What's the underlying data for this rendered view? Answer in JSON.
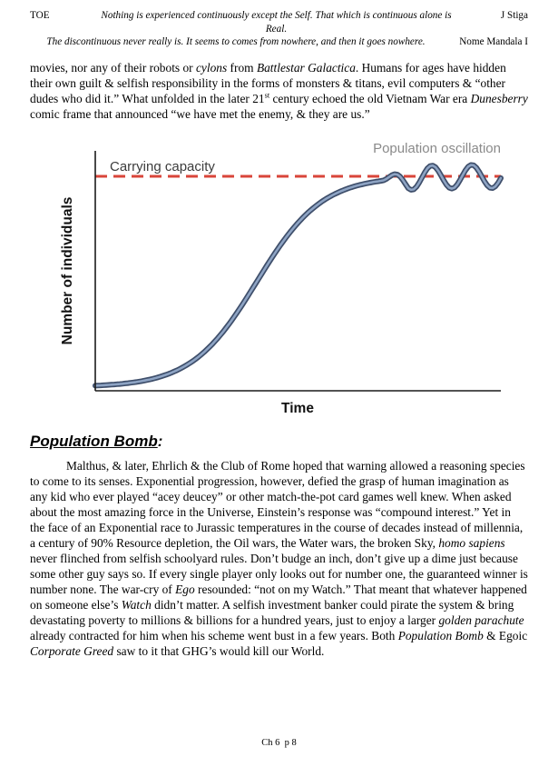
{
  "header": {
    "doc_code": "TOE",
    "quote_line1": "Nothing is experienced continuously except the Self. That which is continuous alone is Real.",
    "author": "J Stiga",
    "quote_line2": "The discontinuous never really is. It seems to comes from nowhere, and then it goes nowhere.",
    "attribution": "Nome Mandala I"
  },
  "paragraph1": {
    "segments": [
      {
        "t": "movies, nor any of their robots or "
      },
      {
        "t": "cylons",
        "s": "i"
      },
      {
        "t": " from "
      },
      {
        "t": "Battlestar Galactica",
        "s": "i"
      },
      {
        "t": ". Humans for ages have hidden their own guilt & selfish responsibility in the forms of monsters & titans, evil computers & “other dudes who did it.” What unfolded in the later 21"
      },
      {
        "t": "st",
        "s": "sup"
      },
      {
        "t": " century echoed the old Vietnam War era "
      },
      {
        "t": "Dunesberry",
        "s": "i"
      },
      {
        "t": " comic frame that announced “we have met the enemy, & they are us.”"
      }
    ]
  },
  "figure": {
    "ylabel": "Number of individuals",
    "xlabel": "Time",
    "capacity_label": "Carrying capacity",
    "oscillation_label": "Population oscillation",
    "colors": {
      "capacity_line": "#d9453a",
      "curve": "#3e4e6a"
    }
  },
  "chart_data": {
    "type": "line",
    "title": "",
    "xlabel": "Time",
    "ylabel": "Number of individuals",
    "annotations": [
      "Carrying capacity",
      "Population oscillation"
    ],
    "series": [
      {
        "name": "population",
        "description": "Logistic (S-shaped) growth curve rising from near zero, leveling at the dashed carrying-capacity line, then oscillating around it at the right side"
      }
    ],
    "axis_numeric_labels": false,
    "grid": false,
    "legend": "none"
  },
  "section": {
    "heading": "Population Bomb",
    "colon": ":"
  },
  "paragraph2": {
    "segments": [
      {
        "t": "Malthus, & later, Ehrlich & the Club of Rome hoped that warning allowed a reasoning species to come to its senses. Exponential progression, however, defied the grasp of human imagination as any kid who ever played “acey deucey” or other match-the-pot card games well knew. When asked about the most amazing force in the Universe, Einstein’s response was “compound interest.” Yet in the face of an Exponential race to Jurassic temperatures in the course of decades instead of millennia, a century of 90% Resource depletion, the Oil wars, the Water wars, the broken Sky, "
      },
      {
        "t": "homo sapiens",
        "s": "i"
      },
      {
        "t": " never flinched from selfish schoolyard rules. Don’t budge an inch, don’t give up a dime just because some other guy says so. If every single player only looks out for number one, the guaranteed winner is number none. The war-cry of "
      },
      {
        "t": "Ego",
        "s": "i"
      },
      {
        "t": " resounded: “not on my Watch.”  That meant that whatever happened on someone else’s "
      },
      {
        "t": "Watch",
        "s": "i"
      },
      {
        "t": " didn’t matter. A selfish investment banker could pirate the system & bring devastating poverty to millions & billions for a hundred years, just to enjoy a larger "
      },
      {
        "t": "golden parachute",
        "s": "i"
      },
      {
        "t": " already contracted for him when his scheme went bust in a few years. Both "
      },
      {
        "t": "Population Bomb",
        "s": "i"
      },
      {
        "t": " & Egoic "
      },
      {
        "t": "Corporate Greed",
        "s": "i"
      },
      {
        "t": " saw to it that GHG’s would kill our World."
      }
    ]
  },
  "footer": {
    "text": "Ch 6  p 8"
  }
}
